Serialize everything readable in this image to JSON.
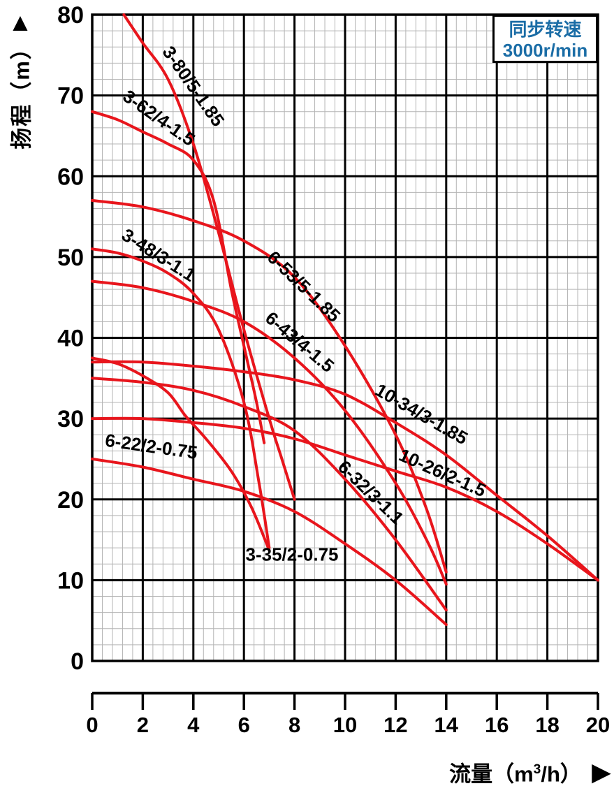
{
  "page": {
    "background": "#ffffff"
  },
  "legend": {
    "line1": "同步转速",
    "line2": "3000r/min",
    "text_color": "#1b6da6",
    "position": "top-right"
  },
  "y_axis": {
    "title": "扬程（m）",
    "arrow": "▲",
    "ticks": [
      80,
      70,
      60,
      50,
      40,
      30,
      20,
      10,
      0
    ]
  },
  "x_axis": {
    "title_prefix": "流量（m",
    "title_sup": "3",
    "title_suffix": "/h）",
    "arrow": "▶",
    "ticks": [
      0,
      2,
      4,
      6,
      8,
      10,
      12,
      14,
      16,
      18,
      20
    ]
  },
  "colors": {
    "curve": "#e8151c",
    "grid_minor": "#b4b4b4",
    "grid_major": "#000000",
    "text": "#000000"
  },
  "chart_data": {
    "type": "line",
    "title": "",
    "xlabel": "流量（m³/h）",
    "ylabel": "扬程（m）",
    "xlim": [
      0,
      20
    ],
    "ylim": [
      0,
      80
    ],
    "x_major_step": 2,
    "y_major_step": 10,
    "x_minor_step": 0.4,
    "y_minor_step": 2,
    "grid": true,
    "legend_text": "同步转速 3000r/min",
    "curve_color": "#e8151c",
    "series": [
      {
        "name": "3-80/5-1.85",
        "points": [
          [
            1.25,
            80
          ],
          [
            2,
            76.5
          ],
          [
            3,
            72
          ],
          [
            4,
            64
          ],
          [
            5,
            53
          ],
          [
            6,
            41
          ],
          [
            7,
            30
          ],
          [
            7.5,
            25
          ],
          [
            8,
            20
          ]
        ],
        "label": {
          "x": 3.8,
          "y": 70.7,
          "rot": 55
        }
      },
      {
        "name": "3-62/4-1.5",
        "points": [
          [
            0,
            68
          ],
          [
            1,
            67
          ],
          [
            2,
            65.5
          ],
          [
            3,
            64
          ],
          [
            4,
            62
          ],
          [
            4.8,
            57
          ],
          [
            5.5,
            46
          ],
          [
            6,
            39
          ],
          [
            6.5,
            32
          ],
          [
            6.8,
            27
          ]
        ],
        "label": {
          "x": 2.5,
          "y": 66.6,
          "rot": 35
        }
      },
      {
        "name": "3-48/3-1.1",
        "points": [
          [
            0,
            51
          ],
          [
            1,
            50.5
          ],
          [
            2,
            49.5
          ],
          [
            3,
            48
          ],
          [
            4,
            45.5
          ],
          [
            5,
            41
          ],
          [
            6,
            32
          ],
          [
            6.6,
            22
          ],
          [
            7,
            14
          ]
        ],
        "label": {
          "x": 2.5,
          "y": 49.6,
          "rot": 32
        }
      },
      {
        "name": "3-35/2-0.75",
        "points": [
          [
            0,
            37.5
          ],
          [
            1,
            36.8
          ],
          [
            2,
            35.3
          ],
          [
            3,
            33.2
          ],
          [
            3.7,
            30.3
          ],
          [
            4.5,
            27.5
          ],
          [
            5.5,
            23.5
          ],
          [
            6.3,
            19
          ],
          [
            7,
            13.7
          ]
        ],
        "label": {
          "x": 7.9,
          "y": 12.4,
          "rot": 0
        }
      },
      {
        "name": "6-53/5-1.85",
        "points": [
          [
            0,
            57
          ],
          [
            2,
            56.2
          ],
          [
            4,
            54.5
          ],
          [
            6,
            52
          ],
          [
            8,
            47.5
          ],
          [
            10,
            39
          ],
          [
            12,
            28
          ],
          [
            13.2,
            19
          ],
          [
            14,
            11
          ]
        ],
        "label": {
          "x": 8.2,
          "y": 45.8,
          "rot": 44
        }
      },
      {
        "name": "6-43/4-1.5",
        "points": [
          [
            0,
            47
          ],
          [
            2,
            46.2
          ],
          [
            4,
            44.5
          ],
          [
            6,
            42
          ],
          [
            8,
            37.5
          ],
          [
            10,
            31
          ],
          [
            12,
            22
          ],
          [
            13.3,
            14.5
          ],
          [
            14,
            9.5
          ]
        ],
        "label": {
          "x": 8.05,
          "y": 38.9,
          "rot": 40
        }
      },
      {
        "name": "6-32/3-1.1",
        "points": [
          [
            0,
            35
          ],
          [
            2,
            34.5
          ],
          [
            4,
            33.5
          ],
          [
            6,
            31.5
          ],
          [
            8,
            28.5
          ],
          [
            10,
            22.5
          ],
          [
            12,
            15
          ],
          [
            14,
            6.3
          ]
        ],
        "label": {
          "x": 10.85,
          "y": 20.3,
          "rot": 44
        }
      },
      {
        "name": "6-22/2-0.75",
        "points": [
          [
            0,
            25
          ],
          [
            2,
            24
          ],
          [
            4,
            22.5
          ],
          [
            6,
            21
          ],
          [
            8,
            18.5
          ],
          [
            10,
            14.5
          ],
          [
            12,
            10
          ],
          [
            14,
            4.5
          ]
        ],
        "label": {
          "x": 2.3,
          "y": 25.8,
          "rot": 8
        }
      },
      {
        "name": "10-34/3-1.85",
        "points": [
          [
            0,
            37
          ],
          [
            2,
            37
          ],
          [
            4,
            36.5
          ],
          [
            6,
            35.8
          ],
          [
            8,
            34.8
          ],
          [
            10,
            33
          ],
          [
            12,
            29.5
          ],
          [
            14,
            25.5
          ],
          [
            16,
            20.5
          ],
          [
            18,
            15.5
          ],
          [
            20,
            10
          ]
        ],
        "label": {
          "x": 12.9,
          "y": 29.9,
          "rot": 30
        }
      },
      {
        "name": "10-26/2-1.5",
        "points": [
          [
            0,
            30
          ],
          [
            2,
            30
          ],
          [
            4,
            29.5
          ],
          [
            6,
            28.8
          ],
          [
            8,
            27.5
          ],
          [
            10,
            25.5
          ],
          [
            12,
            23.5
          ],
          [
            14,
            21.5
          ],
          [
            16,
            18.5
          ],
          [
            18,
            14.5
          ],
          [
            20,
            10
          ]
        ],
        "label": {
          "x": 13.75,
          "y": 22.6,
          "rot": 24
        }
      }
    ]
  }
}
